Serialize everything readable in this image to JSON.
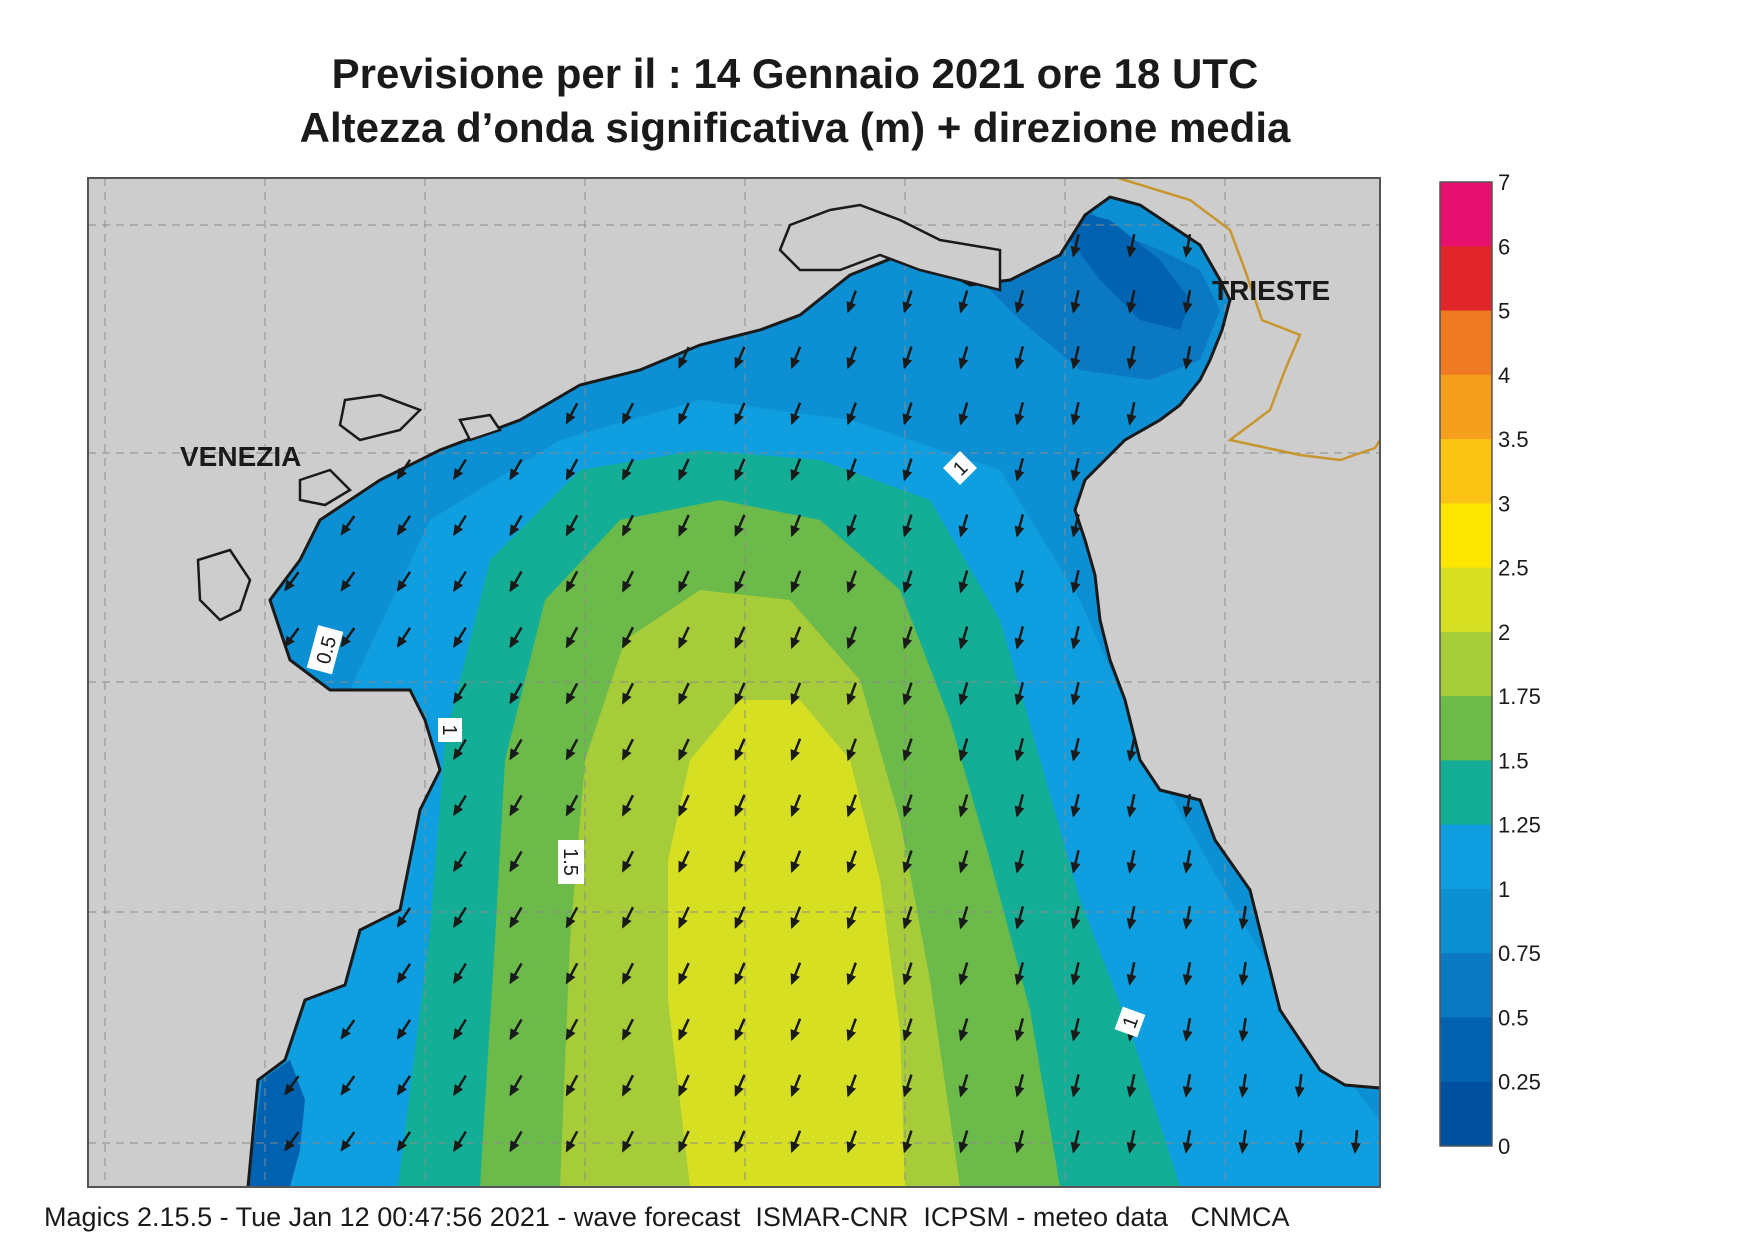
{
  "title": {
    "line1": "Previsione per il  :  14  Gennaio  2021   ore 18 UTC",
    "line2": "Altezza d’onda significativa (m) + direzione media"
  },
  "places": [
    "VENEZIA",
    "TRIESTE"
  ],
  "contour_labels": [
    "0.5",
    "1",
    "1",
    "1.5",
    "1"
  ],
  "colorbar": {
    "ticks": [
      "7",
      "6",
      "5",
      "4",
      "3.5",
      "3",
      "2.5",
      "2",
      "1.75",
      "1.5",
      "1.25",
      "1",
      "0.75",
      "0.5",
      "0.25",
      "0"
    ],
    "colors": [
      "#e8106e",
      "#e0262a",
      "#f07a22",
      "#f4a01c",
      "#fbc313",
      "#fde600",
      "#d7df23",
      "#a6cc3a",
      "#6bba4a",
      "#14ae97",
      "#0f9fe0",
      "#0d8fd4",
      "#0b79c2",
      "#0062b0",
      "#0050a0"
    ]
  },
  "colors": {
    "land": "#cdcdcd",
    "coast": "#1a1a1a",
    "border": "#c8962e",
    "grid": "#8a8a8a",
    "arrow": "#1a1a1a"
  },
  "footer": "Magics 2.15.5 - Tue Jan 12 00:47:56 2021 - wave forecast  ISMAR-CNR  ICPSM - meteo data   CNMCA"
}
